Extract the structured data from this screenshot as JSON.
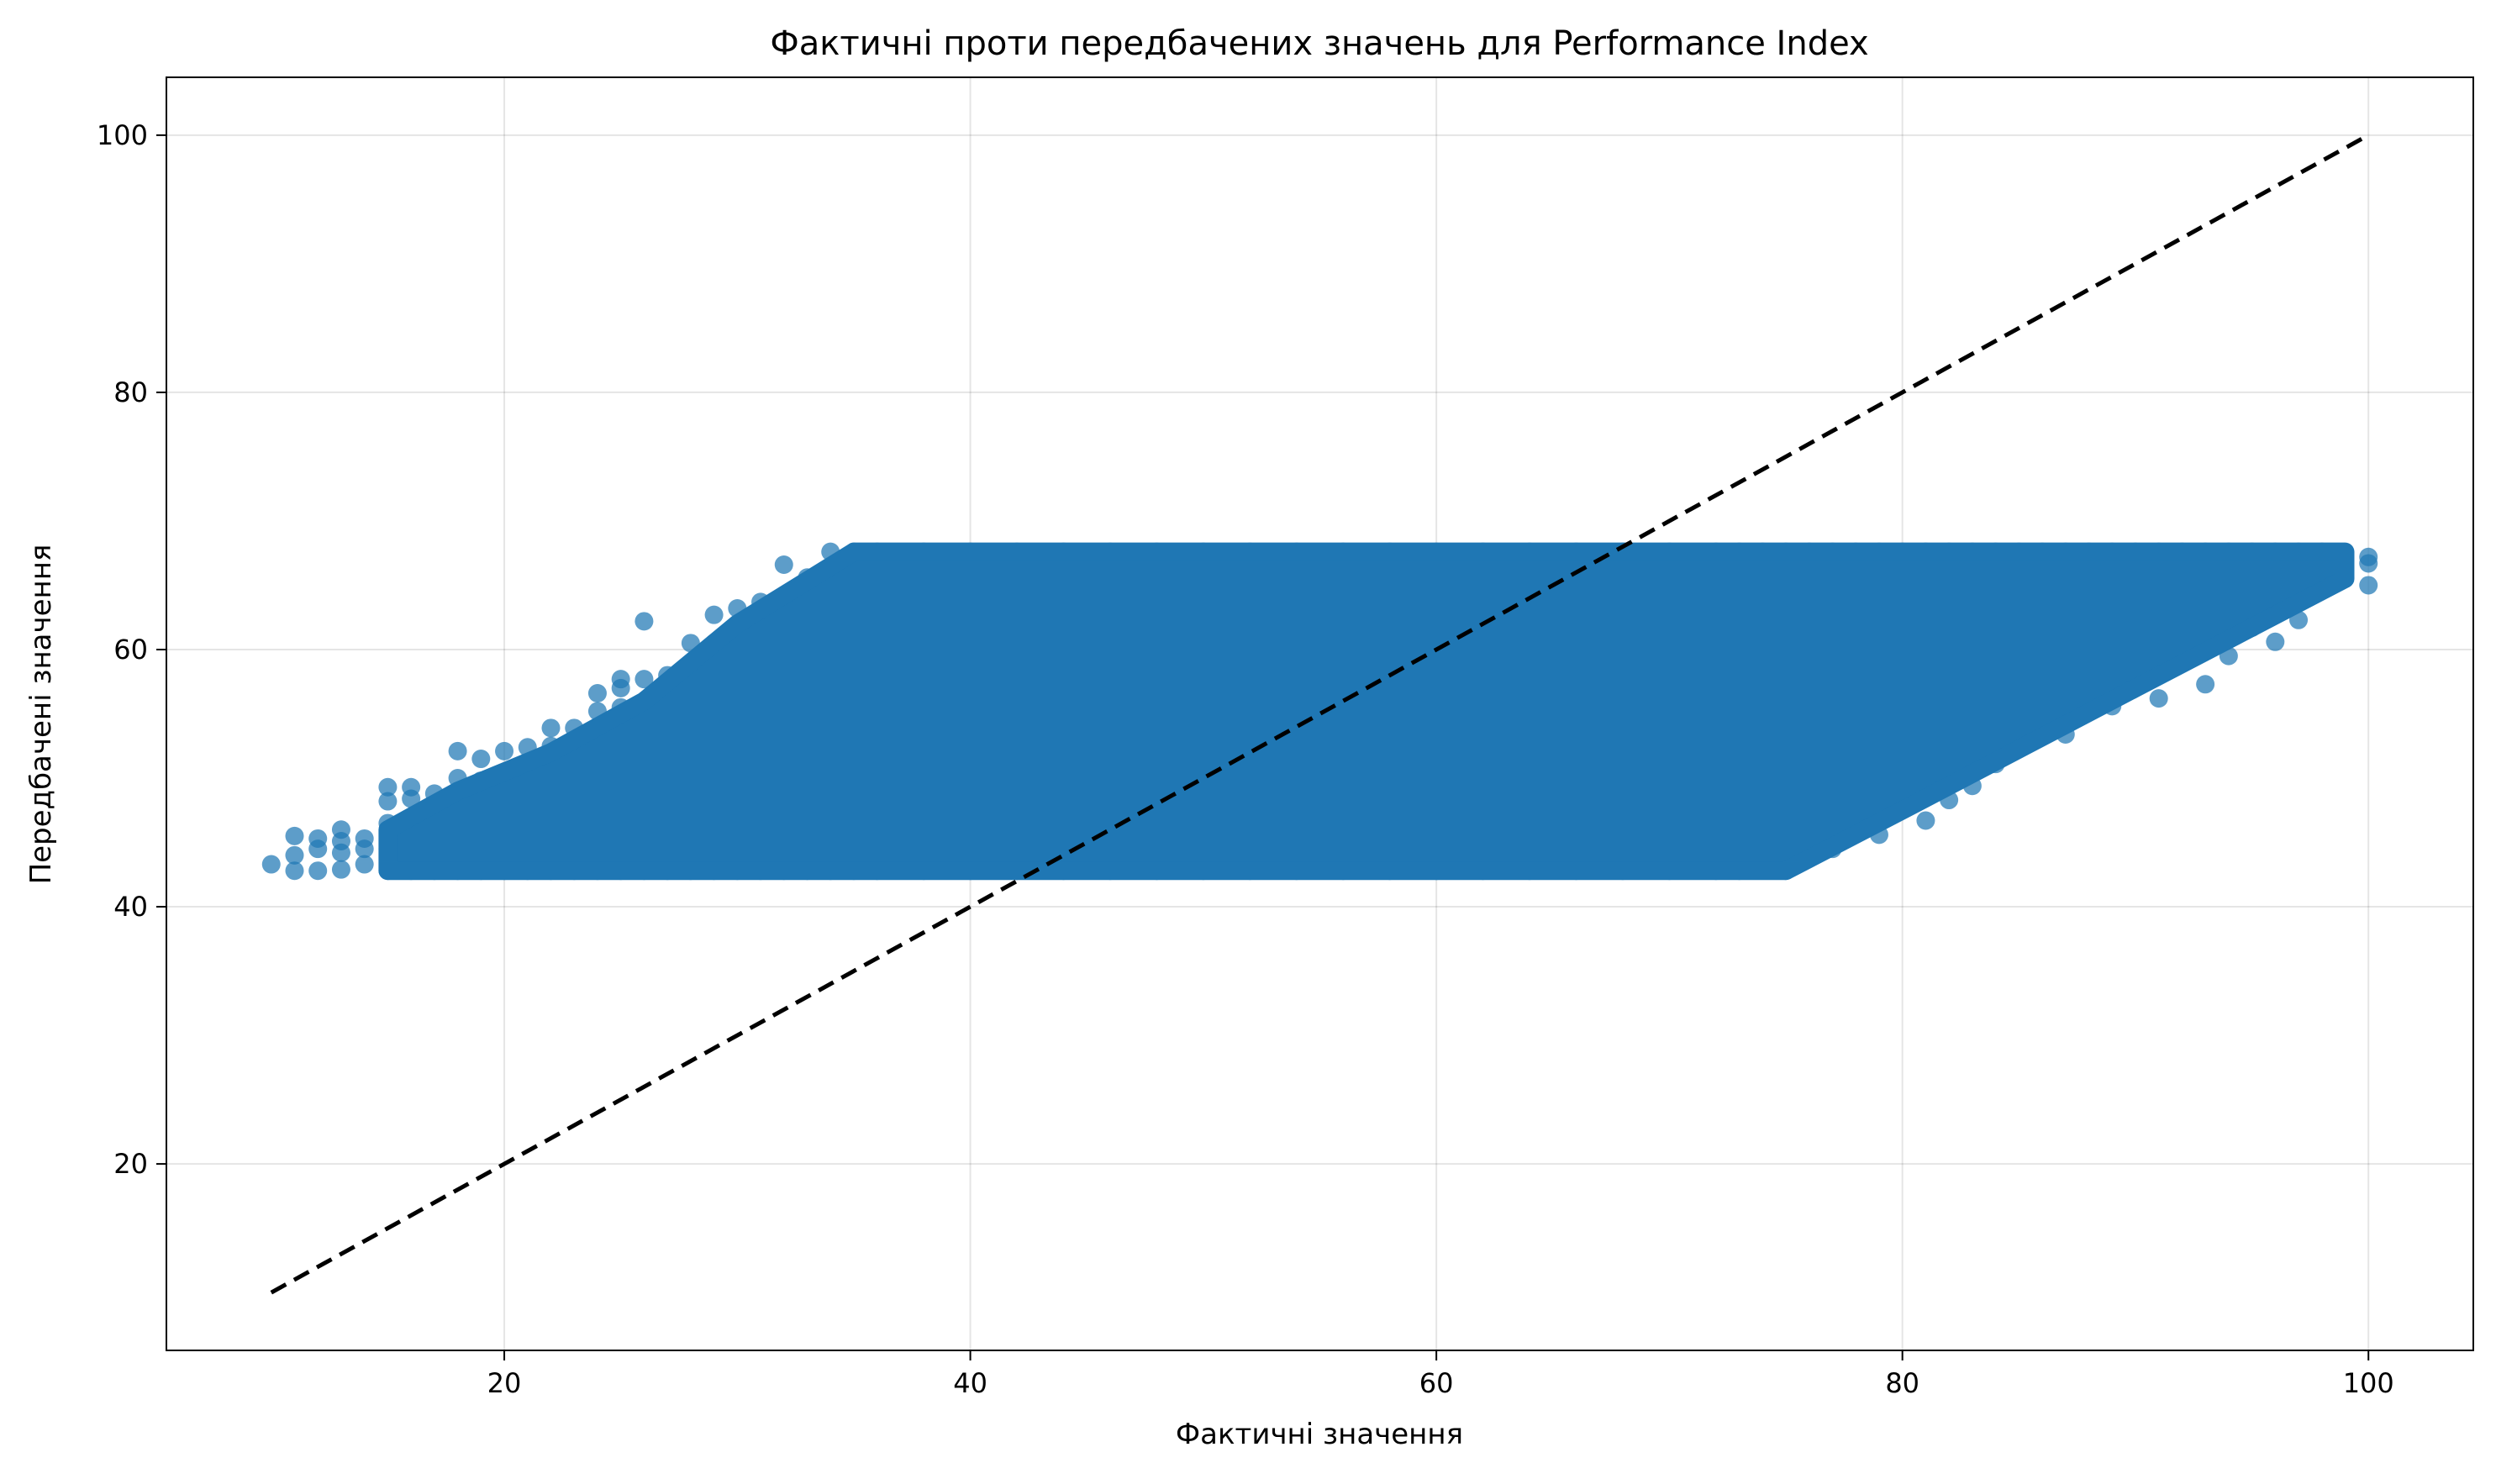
{
  "chart_data": {
    "type": "scatter",
    "title": "Фактичні проти передбачених значень для Performance Index",
    "xlabel": "Фактичні значення",
    "ylabel": "Передбачені значення",
    "xlim": [
      5.5,
      104.5
    ],
    "ylim": [
      5.5,
      104.5
    ],
    "x_ticks": [
      20,
      40,
      60,
      80,
      100
    ],
    "y_ticks": [
      20,
      40,
      60,
      80,
      100
    ],
    "x_tick_labels": [
      "20",
      "40",
      "60",
      "80",
      "100"
    ],
    "y_tick_labels": [
      "20",
      "40",
      "60",
      "80",
      "100"
    ],
    "grid": true,
    "colors": {
      "points": "#1f77b4",
      "reference_line": "#000000"
    },
    "series": [
      {
        "kind": "points",
        "points": [
          [
            10,
            43.3
          ],
          [
            11,
            42.8
          ],
          [
            11,
            44.0
          ],
          [
            11,
            45.5
          ],
          [
            12,
            42.8
          ],
          [
            12,
            44.5
          ],
          [
            12,
            45.3
          ],
          [
            13,
            42.9
          ],
          [
            13,
            44.2
          ],
          [
            13,
            45.1
          ],
          [
            13,
            46.0
          ],
          [
            14,
            43.3
          ],
          [
            14,
            44.5
          ],
          [
            14,
            45.3
          ],
          [
            15,
            42.8
          ],
          [
            15,
            44.5
          ],
          [
            15,
            46.5
          ],
          [
            15,
            48.2
          ],
          [
            15,
            49.3
          ],
          [
            16,
            42.8
          ],
          [
            16,
            44.5
          ],
          [
            16,
            46.3
          ],
          [
            16,
            48.4
          ],
          [
            16,
            49.3
          ],
          [
            17,
            42.8
          ],
          [
            17,
            45.0
          ],
          [
            17,
            47.2
          ],
          [
            17,
            48.8
          ],
          [
            18,
            42.8
          ],
          [
            18,
            45.0
          ],
          [
            18,
            47.5
          ],
          [
            18,
            50.0
          ],
          [
            18,
            52.1
          ],
          [
            19,
            42.8
          ],
          [
            19,
            45.5
          ],
          [
            19,
            48.0
          ],
          [
            19,
            49.8
          ],
          [
            19,
            51.5
          ],
          [
            20,
            42.8
          ],
          [
            20,
            45.0
          ],
          [
            20,
            47.5
          ],
          [
            20,
            50.0
          ],
          [
            20,
            52.1
          ],
          [
            21,
            42.8
          ],
          [
            21,
            45.5
          ],
          [
            21,
            48.0
          ],
          [
            21,
            50.5
          ],
          [
            21,
            52.4
          ],
          [
            22,
            42.8
          ],
          [
            22,
            45.5
          ],
          [
            22,
            48.0
          ],
          [
            22,
            50.5
          ],
          [
            22,
            52.5
          ],
          [
            22,
            53.9
          ],
          [
            23,
            42.8
          ],
          [
            23,
            45.5
          ],
          [
            23,
            48.0
          ],
          [
            23,
            50.5
          ],
          [
            23,
            52.8
          ],
          [
            23,
            53.9
          ],
          [
            24,
            42.8
          ],
          [
            24,
            45.5
          ],
          [
            24,
            48.0
          ],
          [
            24,
            50.5
          ],
          [
            24,
            53.0
          ],
          [
            24,
            55.2
          ],
          [
            24,
            56.6
          ],
          [
            25,
            42.8
          ],
          [
            25,
            45.5
          ],
          [
            25,
            48.0
          ],
          [
            25,
            50.5
          ],
          [
            25,
            53.0
          ],
          [
            25,
            55.5
          ],
          [
            25,
            57.0
          ],
          [
            25,
            57.7
          ],
          [
            26,
            42.8
          ],
          [
            26,
            45.5
          ],
          [
            26,
            48.0
          ],
          [
            26,
            50.5
          ],
          [
            26,
            53.0
          ],
          [
            26,
            55.5
          ],
          [
            26,
            57.7
          ],
          [
            26,
            62.2
          ],
          [
            27,
            42.8
          ],
          [
            27,
            45.5
          ],
          [
            27,
            48.0
          ],
          [
            27,
            50.5
          ],
          [
            27,
            53.0
          ],
          [
            27,
            55.5
          ],
          [
            27,
            58.0
          ],
          [
            28,
            42.8
          ],
          [
            28,
            45.5
          ],
          [
            28,
            48.0
          ],
          [
            28,
            50.5
          ],
          [
            28,
            53.0
          ],
          [
            28,
            55.5
          ],
          [
            28,
            58.0
          ],
          [
            28,
            60.5
          ],
          [
            29,
            42.8
          ],
          [
            29,
            45.5
          ],
          [
            29,
            48.0
          ],
          [
            29,
            50.5
          ],
          [
            29,
            53.0
          ],
          [
            29,
            55.5
          ],
          [
            29,
            58.0
          ],
          [
            29,
            60.5
          ],
          [
            29,
            62.7
          ],
          [
            30,
            42.8
          ],
          [
            30,
            45.5
          ],
          [
            30,
            48.0
          ],
          [
            30,
            50.5
          ],
          [
            30,
            53.0
          ],
          [
            30,
            55.5
          ],
          [
            30,
            58.0
          ],
          [
            30,
            60.5
          ],
          [
            30,
            63.2
          ],
          [
            31,
            42.8
          ],
          [
            31,
            45.5
          ],
          [
            31,
            48.0
          ],
          [
            31,
            50.5
          ],
          [
            31,
            53.0
          ],
          [
            31,
            55.5
          ],
          [
            31,
            58.0
          ],
          [
            31,
            60.5
          ],
          [
            31,
            63.0
          ],
          [
            31,
            63.7
          ],
          [
            32,
            42.8
          ],
          [
            32,
            45.5
          ],
          [
            32,
            48.0
          ],
          [
            32,
            50.5
          ],
          [
            32,
            53.0
          ],
          [
            32,
            55.5
          ],
          [
            32,
            58.0
          ],
          [
            32,
            60.5
          ],
          [
            32,
            63.0
          ],
          [
            32,
            66.6
          ],
          [
            33,
            42.8
          ],
          [
            33,
            45.5
          ],
          [
            33,
            48.0
          ],
          [
            33,
            50.5
          ],
          [
            33,
            53.0
          ],
          [
            33,
            55.5
          ],
          [
            33,
            58.0
          ],
          [
            33,
            60.5
          ],
          [
            33,
            63.0
          ],
          [
            33,
            65.6
          ],
          [
            34,
            42.8
          ],
          [
            34,
            45.5
          ],
          [
            34,
            48.0
          ],
          [
            34,
            50.5
          ],
          [
            34,
            53.0
          ],
          [
            34,
            55.5
          ],
          [
            34,
            58.0
          ],
          [
            34,
            60.5
          ],
          [
            34,
            63.0
          ],
          [
            34,
            65.0
          ],
          [
            34,
            67.6
          ],
          [
            35,
            42.8
          ],
          [
            35,
            45.5
          ],
          [
            35,
            48.0
          ],
          [
            35,
            50.5
          ],
          [
            35,
            53.0
          ],
          [
            35,
            55.5
          ],
          [
            35,
            58.0
          ],
          [
            35,
            60.5
          ],
          [
            35,
            63.0
          ],
          [
            35,
            65.0
          ],
          [
            35,
            67.6
          ],
          [
            36,
            42.8
          ],
          [
            36,
            67.6
          ],
          [
            38,
            42.8
          ],
          [
            38,
            67.6
          ],
          [
            40,
            42.8
          ],
          [
            40,
            67.6
          ],
          [
            42,
            42.8
          ],
          [
            42,
            67.6
          ],
          [
            44,
            42.8
          ],
          [
            44,
            67.6
          ],
          [
            46,
            42.8
          ],
          [
            46,
            67.6
          ],
          [
            48,
            42.8
          ],
          [
            48,
            67.6
          ],
          [
            50,
            42.8
          ],
          [
            50,
            67.6
          ],
          [
            52,
            42.8
          ],
          [
            52,
            67.6
          ],
          [
            54,
            42.8
          ],
          [
            54,
            67.6
          ],
          [
            56,
            42.8
          ],
          [
            56,
            67.6
          ],
          [
            58,
            42.8
          ],
          [
            58,
            67.6
          ],
          [
            60,
            42.8
          ],
          [
            60,
            67.6
          ],
          [
            62,
            42.8
          ],
          [
            62,
            67.6
          ],
          [
            64,
            42.8
          ],
          [
            64,
            67.6
          ],
          [
            66,
            42.8
          ],
          [
            66,
            67.6
          ],
          [
            68,
            42.8
          ],
          [
            68,
            67.6
          ],
          [
            70,
            42.8
          ],
          [
            70,
            67.6
          ],
          [
            72,
            42.8
          ],
          [
            72,
            67.6
          ],
          [
            73,
            42.8
          ],
          [
            73,
            67.6
          ],
          [
            74,
            43.5
          ],
          [
            74,
            67.6
          ],
          [
            75,
            42.8
          ],
          [
            75,
            45.0
          ],
          [
            75,
            67.6
          ],
          [
            76,
            44.0
          ],
          [
            76,
            46.3
          ],
          [
            76,
            67.6
          ],
          [
            77,
            44.5
          ],
          [
            77,
            46.8
          ],
          [
            77,
            67.6
          ],
          [
            78,
            46.3
          ],
          [
            78,
            48.0
          ],
          [
            78,
            67.6
          ],
          [
            79,
            45.6
          ],
          [
            79,
            48.3
          ],
          [
            79,
            67.6
          ],
          [
            80,
            48.2
          ],
          [
            80,
            50.0
          ],
          [
            80,
            67.6
          ],
          [
            81,
            46.7
          ],
          [
            81,
            49.5
          ],
          [
            81,
            67.6
          ],
          [
            82,
            48.3
          ],
          [
            82,
            50.5
          ],
          [
            82,
            67.6
          ],
          [
            83,
            49.4
          ],
          [
            83,
            52.0
          ],
          [
            83,
            67.6
          ],
          [
            84,
            51.1
          ],
          [
            84,
            53.0
          ],
          [
            84,
            67.6
          ],
          [
            85,
            53.0
          ],
          [
            85,
            55.0
          ],
          [
            85,
            67.6
          ],
          [
            86,
            54.0
          ],
          [
            86,
            56.0
          ],
          [
            86,
            67.6
          ],
          [
            87,
            53.4
          ],
          [
            87,
            55.0
          ],
          [
            87,
            67.6
          ],
          [
            88,
            56.0
          ],
          [
            88,
            58.0
          ],
          [
            88,
            67.6
          ],
          [
            89,
            55.6
          ],
          [
            89,
            57.5
          ],
          [
            89,
            67.6
          ],
          [
            90,
            58.0
          ],
          [
            90,
            60.0
          ],
          [
            90,
            67.6
          ],
          [
            91,
            56.2
          ],
          [
            91,
            58.5
          ],
          [
            91,
            67.6
          ],
          [
            92,
            58.9
          ],
          [
            92,
            61.0
          ],
          [
            92,
            67.6
          ],
          [
            93,
            57.3
          ],
          [
            93,
            60.0
          ],
          [
            93,
            67.6
          ],
          [
            94,
            59.5
          ],
          [
            94,
            62.0
          ],
          [
            94,
            67.6
          ],
          [
            95,
            61.7
          ],
          [
            95,
            63.5
          ],
          [
            95,
            67.6
          ],
          [
            96,
            60.6
          ],
          [
            96,
            63.0
          ],
          [
            96,
            67.6
          ],
          [
            97,
            62.3
          ],
          [
            97,
            64.5
          ],
          [
            97,
            67.6
          ],
          [
            98,
            65.0
          ],
          [
            98,
            67.0
          ],
          [
            98,
            67.6
          ],
          [
            99,
            65.6
          ],
          [
            99,
            67.0
          ],
          [
            100,
            65.0
          ],
          [
            100,
            66.7
          ],
          [
            100,
            67.2
          ]
        ]
      },
      {
        "kind": "reference_line",
        "style": "dashed",
        "x": [
          10,
          100
        ],
        "y": [
          10,
          100
        ]
      }
    ]
  }
}
